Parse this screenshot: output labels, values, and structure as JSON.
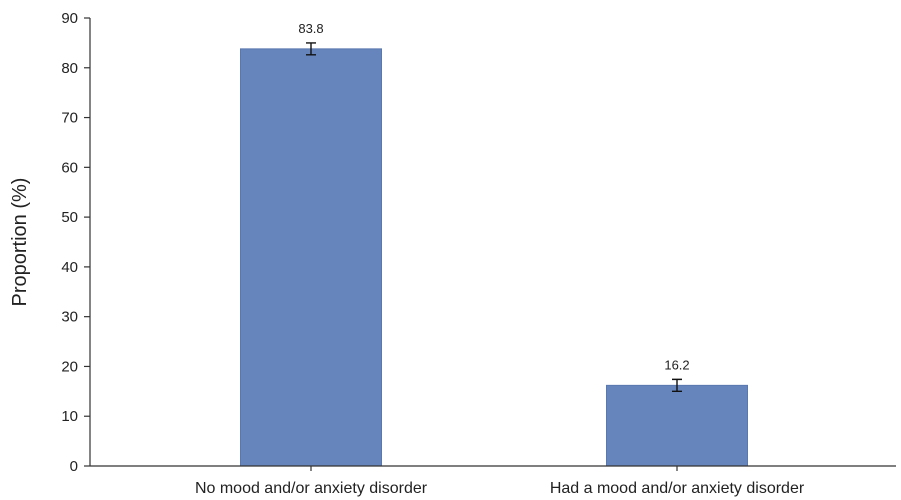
{
  "chart_data": {
    "type": "bar",
    "categories": [
      "No mood and/or anxiety disorder",
      "Had a mood and/or anxiety disorder"
    ],
    "values": [
      83.8,
      16.2
    ],
    "value_labels": [
      "83.8",
      "16.2"
    ],
    "error_bars": [
      [
        82.6,
        85.0
      ],
      [
        15.0,
        17.4
      ]
    ],
    "title": "",
    "xlabel": "",
    "ylabel": "Proportion (%)",
    "ylim": [
      0,
      90
    ],
    "yticks": [
      0,
      10,
      20,
      30,
      40,
      50,
      60,
      70,
      80,
      90
    ],
    "grid": false,
    "bar_color": "#6685bd",
    "bar_edge_color": "#5a78b0"
  }
}
